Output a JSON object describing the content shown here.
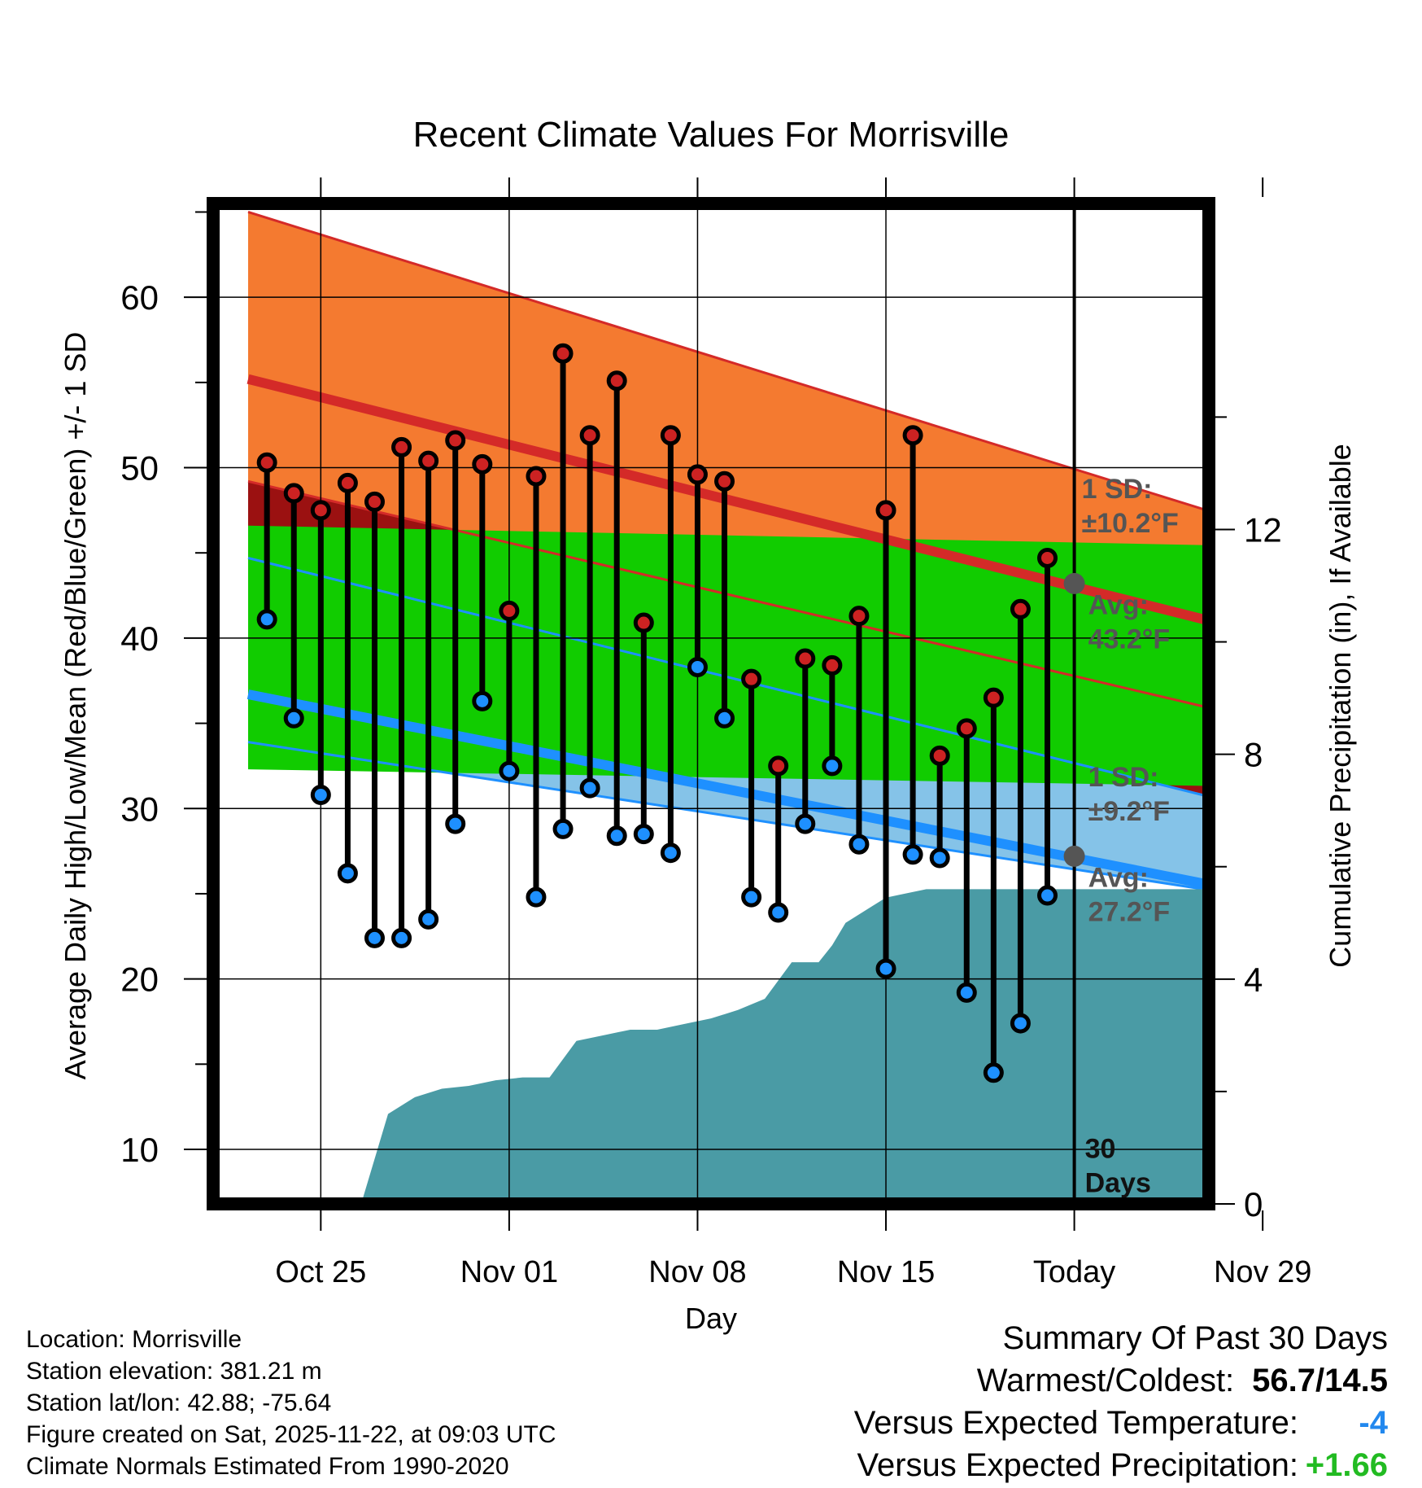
{
  "chart_data": {
    "type": "line",
    "title": "Recent Climate Values For Morrisville",
    "xlabel": "Day",
    "ylabel_left": "Average Daily High/Low/Mean (Red/Blue/Green) +/- 1 SD",
    "ylabel_right": "Cumulative Precipitation (in), If Available",
    "ylim": [
      6.8,
      65.5
    ],
    "y2lim": [
      0,
      17.8
    ],
    "y_ticks": [
      10,
      20,
      30,
      40,
      50,
      60
    ],
    "y2_ticks": [
      0,
      4,
      8,
      12
    ],
    "x_range": [
      -4,
      33
    ],
    "x_ticks": [
      {
        "day": 0,
        "label": "Oct 25"
      },
      {
        "day": 7,
        "label": "Nov 01"
      },
      {
        "day": 14,
        "label": "Nov 08"
      },
      {
        "day": 21,
        "label": "Nov 15"
      },
      {
        "day": 28,
        "label": "Today"
      },
      {
        "day": 35,
        "label": "Nov 29"
      }
    ],
    "normals": {
      "high_mean": [
        55.2,
        39.2
      ],
      "high_sd_band": [
        [
          65.0,
          45.2
        ],
        [
          49.2,
          34.2
        ]
      ],
      "low_mean": [
        36.7,
        24.1
      ],
      "low_sd_band": [
        [
          44.7,
          28.9
        ],
        [
          33.9,
          24.1
        ]
      ],
      "mean_band": [
        [
          46.6,
          45.3
        ],
        [
          32.3,
          31.2
        ]
      ],
      "day_range": [
        -2.7,
        37.6
      ]
    },
    "annotations": {
      "high_sd_label": [
        "1 SD:",
        "±10.2°F"
      ],
      "high_avg_label": [
        "Avg:",
        "43.2°F"
      ],
      "low_sd_label": [
        "1 SD:",
        "±9.2°F"
      ],
      "low_avg_label": [
        "Avg:",
        "27.2°F"
      ],
      "today_high_avg": 43.2,
      "today_low_avg": 27.2,
      "days_label": [
        "30",
        "Days"
      ]
    },
    "series": [
      {
        "name": "High",
        "color": "#cc2222",
        "values": [
          50.3,
          48.5,
          47.5,
          49.1,
          48.0,
          51.2,
          50.4,
          51.6,
          50.2,
          41.6,
          49.5,
          56.7,
          51.9,
          55.1,
          40.9,
          51.9,
          49.6,
          49.2,
          37.6,
          32.5,
          38.8,
          38.4,
          41.3,
          47.5,
          51.9,
          33.1,
          34.7,
          36.5,
          41.7,
          44.7
        ]
      },
      {
        "name": "Low",
        "color": "#1e90ff",
        "values": [
          41.1,
          35.3,
          30.8,
          26.2,
          22.4,
          22.4,
          23.5,
          29.1,
          36.3,
          32.2,
          24.8,
          28.8,
          31.2,
          28.4,
          28.5,
          27.4,
          38.3,
          35.3,
          24.8,
          23.9,
          29.1,
          32.5,
          27.9,
          20.6,
          27.3,
          27.1,
          19.2,
          14.5,
          17.4,
          24.9
        ]
      }
    ],
    "first_day": -2,
    "precipitation": {
      "days": [
        1.5,
        2.5,
        3.5,
        4.5,
        5.5,
        6.5,
        7.5,
        8.5,
        9.5,
        10.5,
        11.5,
        12.5,
        13.5,
        14.5,
        15.5,
        16.5,
        17.5,
        18.5,
        19,
        19.5,
        20.5,
        21,
        21.5,
        22.5,
        23.5,
        33
      ],
      "values": [
        0,
        1.6,
        1.9,
        2.05,
        2.1,
        2.2,
        2.25,
        2.25,
        2.9,
        3.0,
        3.1,
        3.1,
        3.2,
        3.3,
        3.45,
        3.65,
        4.3,
        4.3,
        4.6,
        5.0,
        5.3,
        5.45,
        5.5,
        5.6,
        5.6,
        5.6
      ]
    },
    "colors": {
      "high_band": "#f47a30",
      "high_line": "#d42a28",
      "low_band": "#85c3e8",
      "low_line": "#1e90ff",
      "mean_band": "#11cc00",
      "overlap": "#9b1111",
      "precip": "#4a9ba5",
      "today_marker": "#555555",
      "annotation_text": "#555555"
    }
  },
  "info": {
    "location": "Location: Morrisville",
    "elevation": "Station elevation: 381.21 m",
    "latlon": "Station lat/lon: 42.88; -75.64",
    "created": "Figure created on Sat, 2025-11-22, at 09:03 UTC",
    "normals": "Climate Normals Estimated From 1990-2020"
  },
  "summary": {
    "title": "Summary Of Past 30 Days",
    "warm_label": "Warmest/Coldest:",
    "warm_value": "56.7/14.5",
    "temp_label": "Versus Expected Temperature:",
    "temp_value": "-4",
    "temp_color": "#2288ee",
    "precip_label": "Versus Expected Precipitation:",
    "precip_value": "+1.66",
    "precip_color": "#22bb22"
  }
}
